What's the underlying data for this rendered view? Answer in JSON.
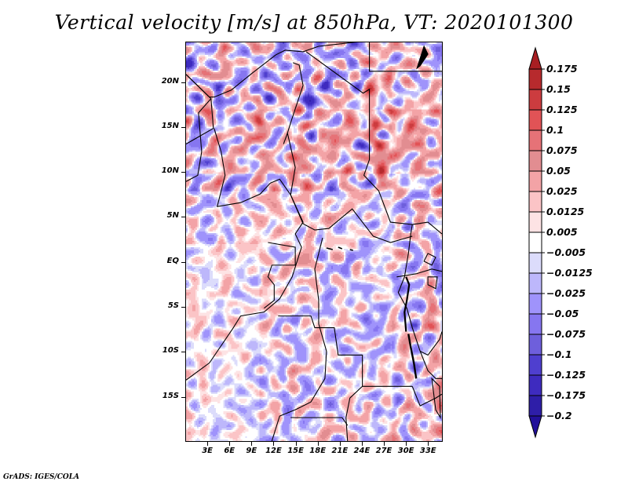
{
  "chart_data": {
    "type": "heatmap",
    "title": "Vertical velocity [m/s] at 850hPa, VT: 2020101300",
    "variable": "Vertical velocity",
    "units": "m/s",
    "level": "850hPa",
    "valid_time": "2020101300",
    "xlabel": "",
    "ylabel": "",
    "x_ticks": [
      "3E",
      "6E",
      "9E",
      "12E",
      "15E",
      "18E",
      "21E",
      "24E",
      "27E",
      "30E",
      "33E"
    ],
    "x_tick_values": [
      3,
      6,
      9,
      12,
      15,
      18,
      21,
      24,
      27,
      30,
      33
    ],
    "y_ticks": [
      "20N",
      "15N",
      "10N",
      "5N",
      "EQ",
      "5S",
      "10S",
      "15S"
    ],
    "y_tick_values": [
      20,
      15,
      10,
      5,
      0,
      -5,
      -10,
      -15
    ],
    "xlim": [
      0,
      35
    ],
    "ylim": [
      -20,
      24.5
    ],
    "grid": false,
    "map_features": [
      "country borders",
      "coastlines",
      "lakes"
    ],
    "region": "Central Africa",
    "colorbar": {
      "placement": "right",
      "orientation": "vertical",
      "extend": "both",
      "labels": [
        "0.175",
        "0.15",
        "0.125",
        "0.1",
        "0.075",
        "0.05",
        "0.025",
        "0.0125",
        "0.005",
        "−0.005",
        "−0.0125",
        "−0.025",
        "−0.05",
        "−0.075",
        "−0.1",
        "−0.125",
        "−0.175",
        "−0.2"
      ],
      "levels": [
        0.175,
        0.15,
        0.125,
        0.1,
        0.075,
        0.05,
        0.025,
        0.0125,
        0.005,
        -0.005,
        -0.0125,
        -0.025,
        -0.05,
        -0.075,
        -0.1,
        -0.125,
        -0.175,
        -0.2
      ],
      "colors": [
        "#a81e22",
        "#b72a2d",
        "#cc3c3f",
        "#e15356",
        "#e67277",
        "#e28d91",
        "#f3a3a6",
        "#fbc4c6",
        "#fde3e4",
        "#ffffff",
        "#dcdcfb",
        "#bdb7fb",
        "#9f93fb",
        "#8676f0",
        "#6e5fdc",
        "#4f3fcf",
        "#3e2bbf",
        "#2e1ea8",
        "#22109a"
      ]
    }
  },
  "footer": "GrADS: IGES/COLA"
}
